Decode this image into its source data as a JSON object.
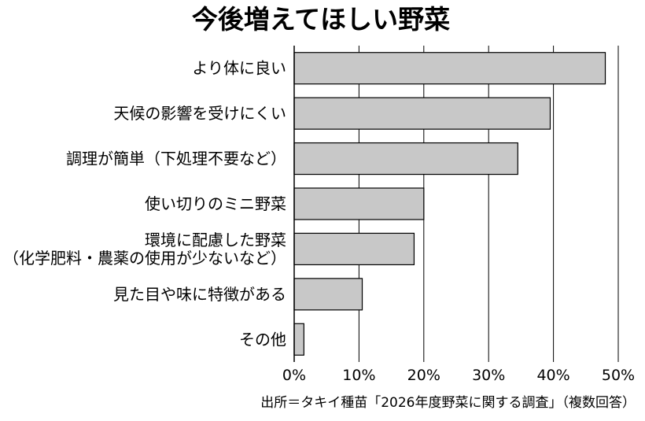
{
  "chart_data": {
    "type": "bar",
    "orientation": "horizontal",
    "title": "今後増えてほしい野菜",
    "categories": [
      [
        "より体に良い"
      ],
      [
        "天候の影響を受けにくい"
      ],
      [
        "調理が簡単（下処理不要など）"
      ],
      [
        "使い切りのミニ野菜"
      ],
      [
        "環境に配慮した野菜",
        "（化学肥料・農薬の使用が少ないなど）"
      ],
      [
        "見た目や味に特徴がある"
      ],
      [
        "その他"
      ]
    ],
    "values": [
      48,
      39.5,
      34.5,
      20,
      18.5,
      10.5,
      1.5
    ],
    "xlim": [
      0,
      50
    ],
    "xticks": [
      "0%",
      "10%",
      "20%",
      "30%",
      "40%",
      "50%"
    ],
    "grid": "vertical",
    "bar_color": "#c8c8c8",
    "source": "出所＝タキイ種苗「2026年度野菜に関する調査」（複数回答）"
  }
}
